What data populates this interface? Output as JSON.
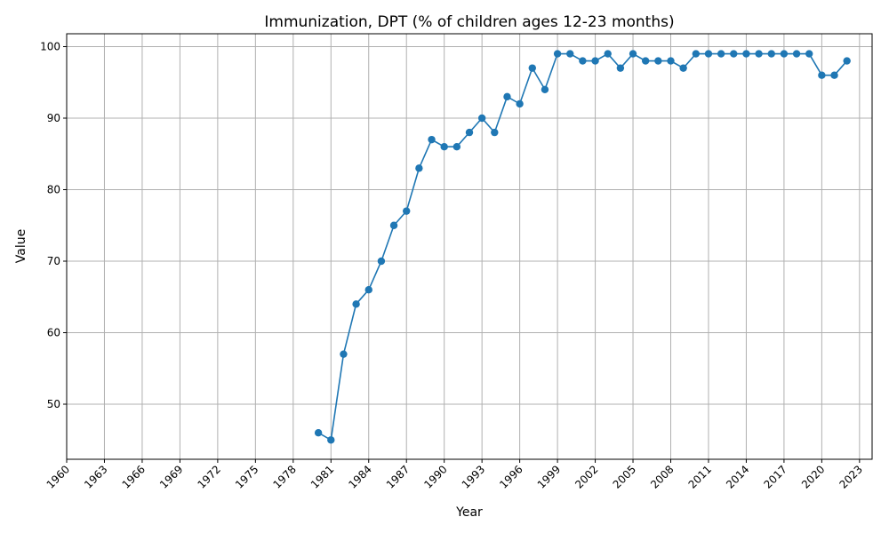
{
  "chart_data": {
    "type": "line",
    "title": "Immunization, DPT (% of children ages 12-23 months)",
    "xlabel": "Year",
    "ylabel": "Value",
    "xlim": [
      1960,
      2024
    ],
    "ylim": [
      42.3,
      101.8
    ],
    "x_ticks": [
      1960,
      1963,
      1966,
      1969,
      1972,
      1975,
      1978,
      1981,
      1984,
      1987,
      1990,
      1993,
      1996,
      1999,
      2002,
      2005,
      2008,
      2011,
      2014,
      2017,
      2020,
      2023
    ],
    "y_ticks": [
      50,
      60,
      70,
      80,
      90,
      100
    ],
    "grid": true,
    "line_color": "#1f77b4",
    "series": [
      {
        "x": [
          1980,
          1981,
          1982,
          1983,
          1984,
          1985,
          1986,
          1987,
          1988,
          1989,
          1990,
          1991,
          1992,
          1993,
          1994,
          1995,
          1996,
          1997,
          1998,
          1999,
          2000,
          2001,
          2002,
          2003,
          2004,
          2005,
          2006,
          2007,
          2008,
          2009,
          2010,
          2011,
          2012,
          2013,
          2014,
          2015,
          2016,
          2017,
          2018,
          2019,
          2020,
          2021,
          2022
        ],
        "values": [
          46,
          45,
          57,
          64,
          66,
          70,
          75,
          77,
          83,
          87,
          86,
          86,
          88,
          90,
          88,
          93,
          92,
          97,
          94,
          99,
          99,
          98,
          98,
          99,
          97,
          99,
          98,
          98,
          98,
          97,
          99,
          99,
          99,
          99,
          99,
          99,
          99,
          99,
          99,
          99,
          96,
          96,
          98
        ]
      }
    ]
  }
}
